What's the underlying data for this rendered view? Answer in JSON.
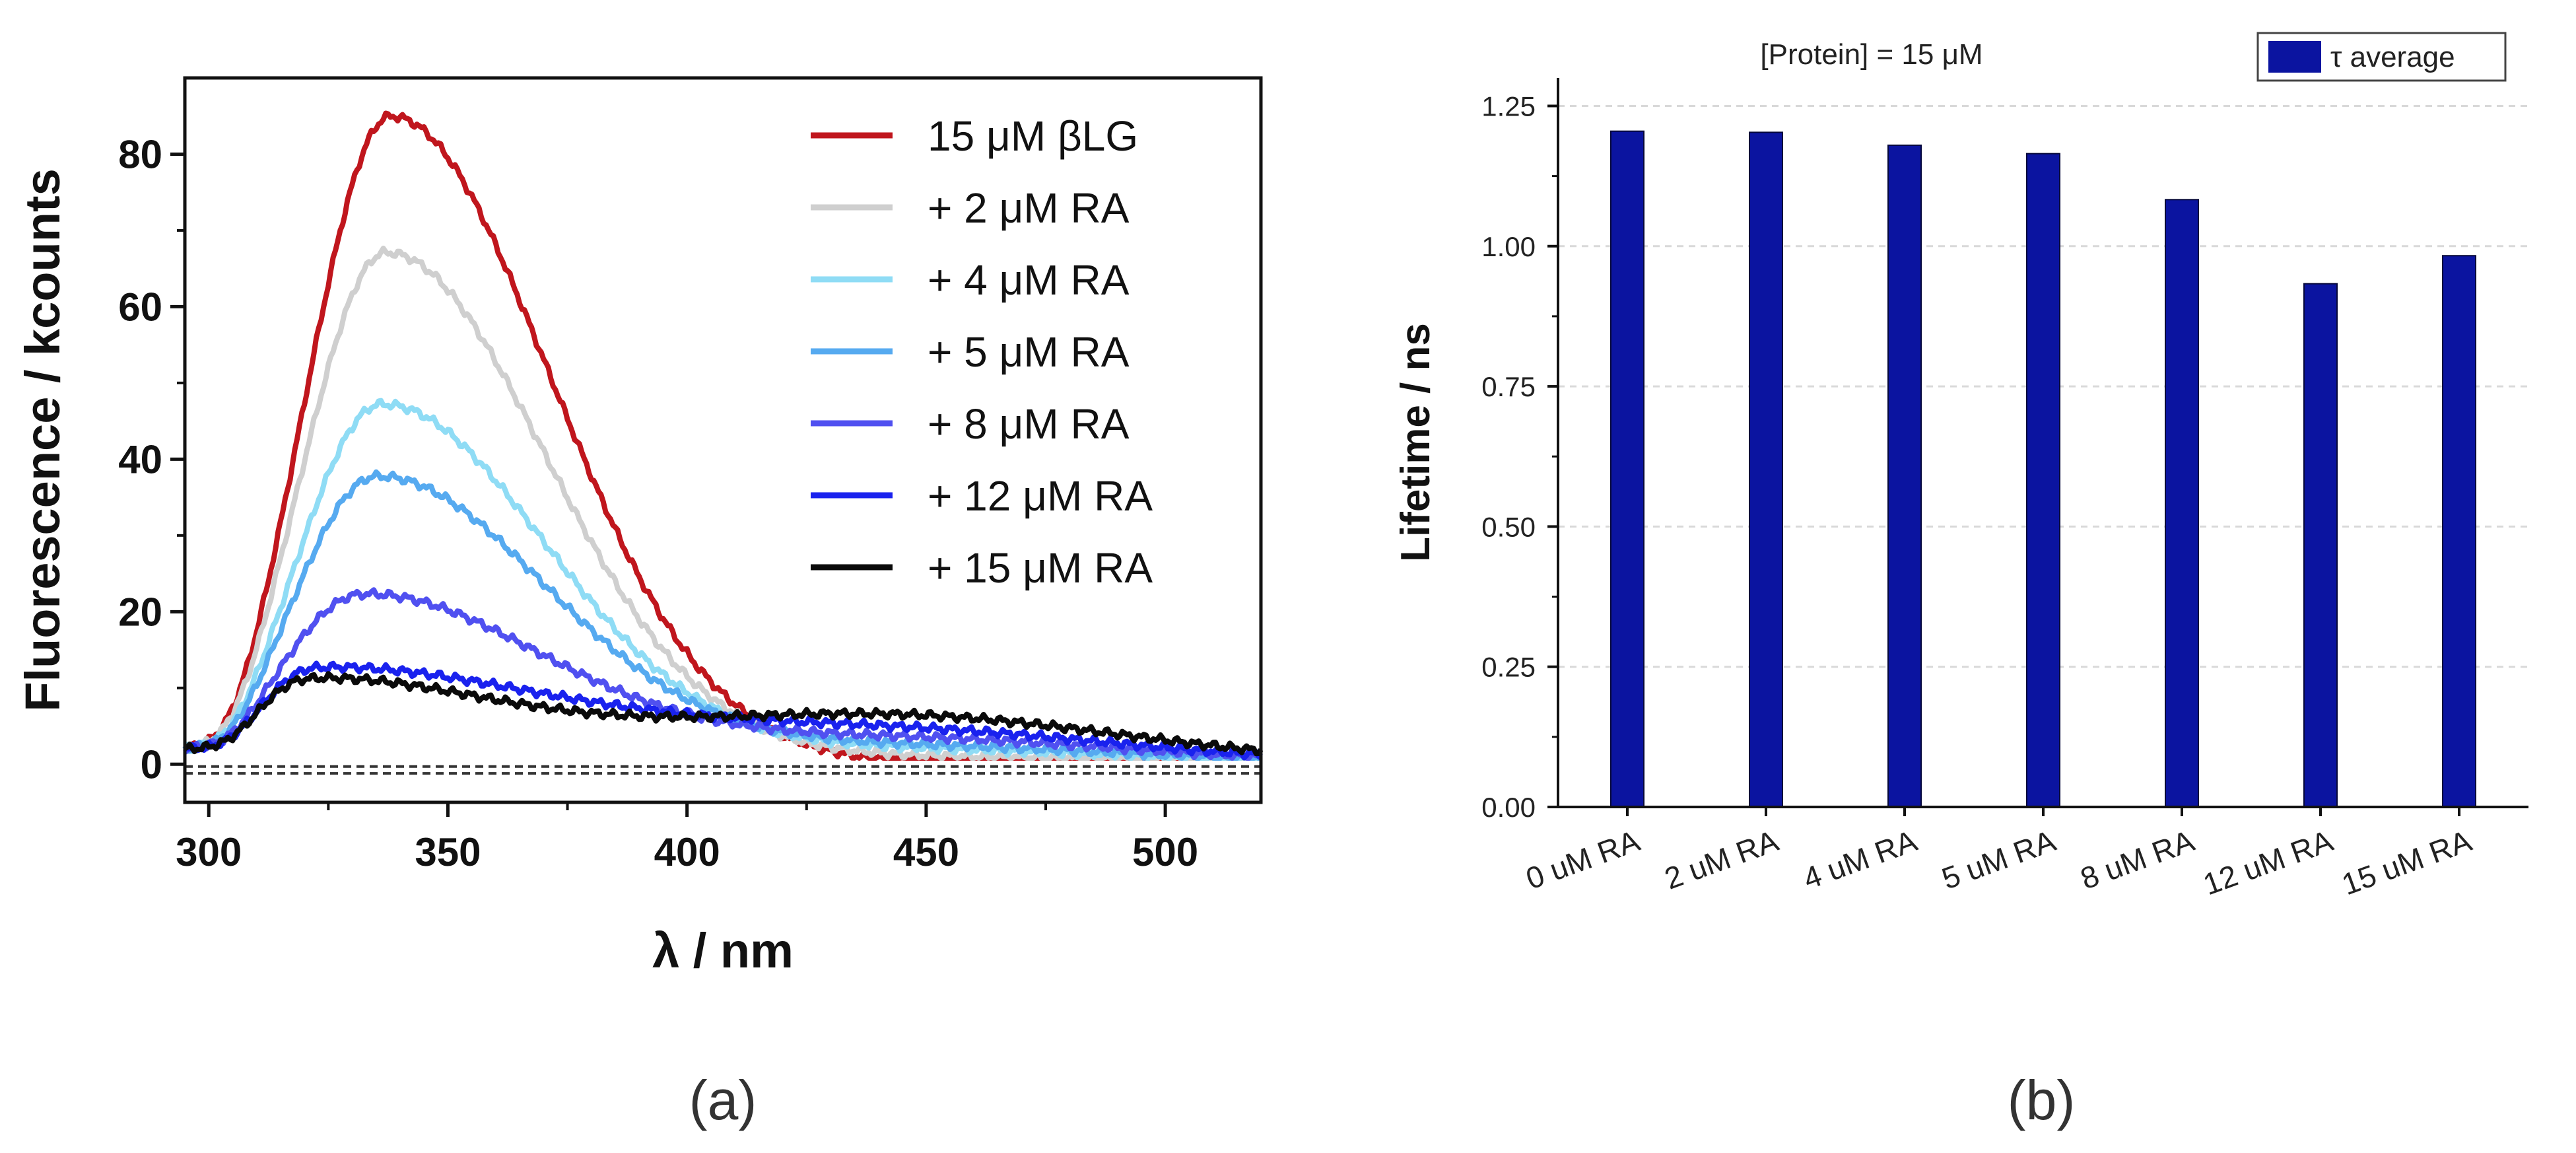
{
  "chart_data": [
    {
      "type": "line",
      "panel_label": "(a)",
      "xlabel": "λ / nm",
      "ylabel": "Fluorescence / kcounts",
      "xlim": [
        295,
        520
      ],
      "ylim": [
        -5,
        90
      ],
      "xticks": [
        300,
        350,
        400,
        450,
        500
      ],
      "yticks": [
        0,
        20,
        40,
        60,
        80
      ],
      "legend_position": "top-right",
      "baselines": [
        -0.3,
        -1.2
      ],
      "series": [
        {
          "name": "15 μM βLG",
          "color": "#c0161d",
          "peak": 85,
          "center": 338,
          "sigma_left": 17,
          "sigma_right": 33,
          "tail": 0
        },
        {
          "name": "+ 2 μM RA",
          "color": "#cfcfcf",
          "peak": 67,
          "center": 337,
          "sigma_left": 17,
          "sigma_right": 33,
          "tail": 1
        },
        {
          "name": "+ 4 μM RA",
          "color": "#8fdcf5",
          "peak": 47,
          "center": 336,
          "sigma_left": 17,
          "sigma_right": 34,
          "tail": 2
        },
        {
          "name": "+ 5 μM RA",
          "color": "#56aaf0",
          "peak": 37.5,
          "center": 335,
          "sigma_left": 17,
          "sigma_right": 35,
          "tail": 2.5
        },
        {
          "name": "+ 8 μM RA",
          "color": "#5050f0",
          "peak": 22,
          "center": 332,
          "sigma_left": 17,
          "sigma_right": 37,
          "tail": 3.5
        },
        {
          "name": "+ 12 μM RA",
          "color": "#1a22ee",
          "peak": 12.5,
          "center": 322,
          "sigma_left": 13,
          "sigma_right": 48,
          "tail": 4.5
        },
        {
          "name": "+ 15 μM RA",
          "color": "#0a0a0a",
          "peak": 11,
          "center": 320,
          "sigma_left": 12,
          "sigma_right": 40,
          "tail": 6.5
        }
      ]
    },
    {
      "type": "bar",
      "panel_label": "(b)",
      "title": "[Protein] = 15 μM",
      "xlabel": "",
      "ylabel": "Lifetime / ns",
      "ylim": [
        0,
        1.3
      ],
      "yticks": [
        "0.00",
        "0.25",
        "0.50",
        "0.75",
        "1.00",
        "1.25"
      ],
      "categories": [
        "0 uM RA",
        "2 uM RA",
        "4 uM RA",
        "5 uM RA",
        "8 uM RA",
        "12 uM RA",
        "15 uM RA"
      ],
      "series": [
        {
          "name": "τ average",
          "color": "#0b14a0",
          "values": [
            1.205,
            1.203,
            1.18,
            1.165,
            1.083,
            0.933,
            0.983
          ]
        }
      ],
      "grid": true,
      "legend_position": "top-right"
    }
  ]
}
